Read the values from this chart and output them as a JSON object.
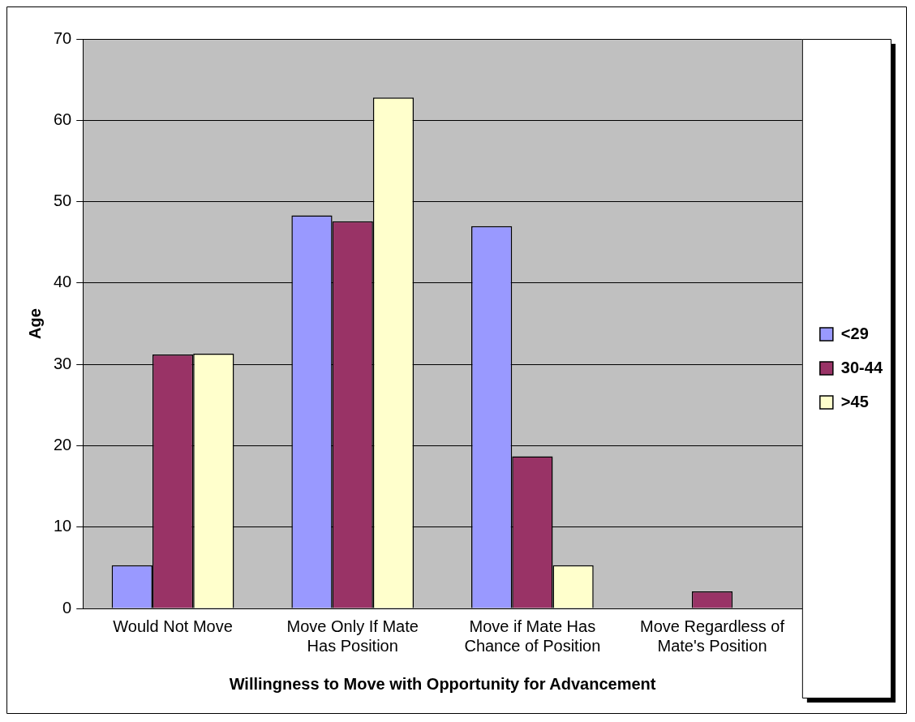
{
  "chart_data": {
    "type": "bar",
    "xlabel": "Willingness to Move with Opportunity for Advancement",
    "ylabel": "Age",
    "categories": [
      "Would Not Move",
      "Move Only If Mate Has Position",
      "Move if Mate Has Chance of Position",
      "Move Regardless of Mate's Position"
    ],
    "series": [
      {
        "name": "<29",
        "color": "#9999ff",
        "values": [
          5.3,
          48.3,
          47.0,
          0
        ]
      },
      {
        "name": "30-44",
        "color": "#993366",
        "values": [
          31.2,
          47.6,
          18.7,
          2.1
        ]
      },
      {
        "name": ">45",
        "color": "#ffffcc",
        "values": [
          31.3,
          62.8,
          5.3,
          0
        ]
      }
    ],
    "ylim": [
      0,
      70
    ],
    "yticks": [
      0,
      10,
      20,
      30,
      40,
      50,
      60,
      70
    ],
    "grid": "y",
    "legend": "right"
  }
}
